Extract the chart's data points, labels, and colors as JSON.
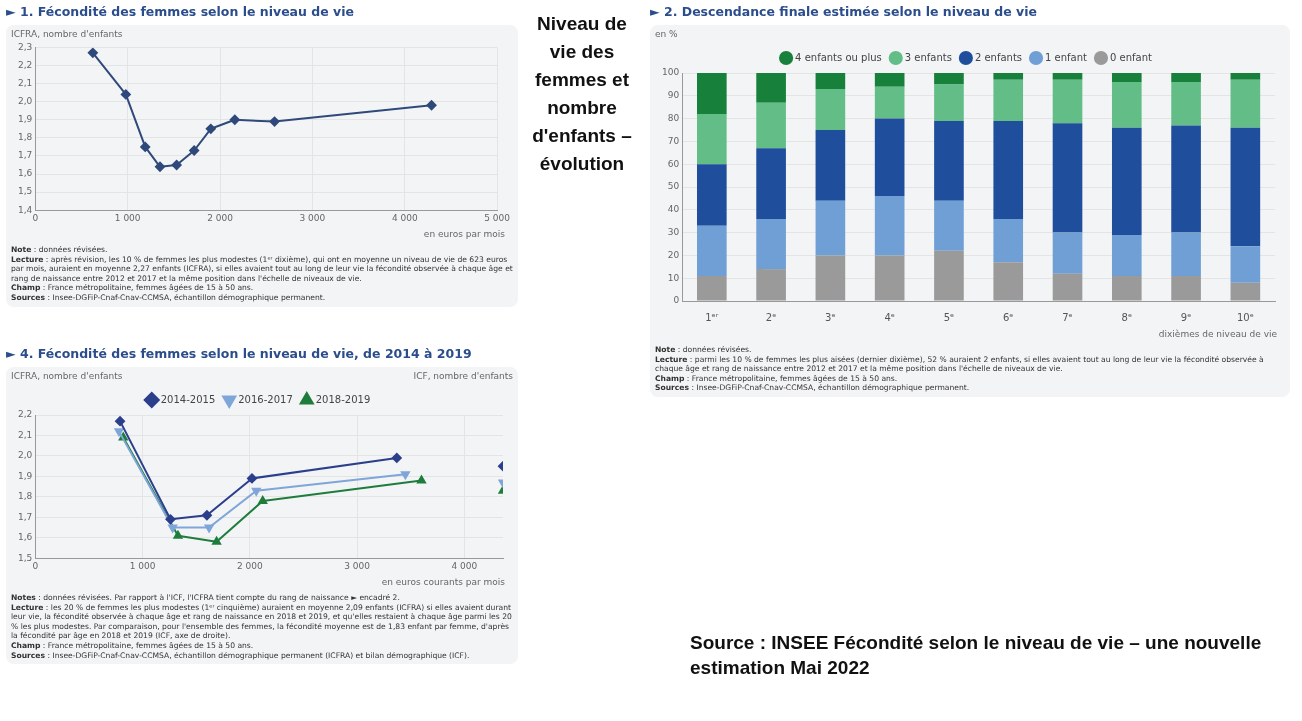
{
  "chart_data": [
    {
      "type": "line",
      "title": "► 1. Fécondité des femmes selon le niveau de vie",
      "ylabel": "ICFRA, nombre d'enfants",
      "xlabel": "en euros par mois",
      "grid": true,
      "legend": false,
      "marker": "diamond",
      "xlim": [
        0,
        5000
      ],
      "xticks": [
        0,
        {
          "value": 1000,
          "label": "1 000"
        },
        {
          "value": 2000,
          "label": "2 000"
        },
        {
          "value": 3000,
          "label": "3 000"
        },
        {
          "value": 4000,
          "label": "4 000"
        },
        {
          "value": 5000,
          "label": "5 000"
        }
      ],
      "ylim": [
        1.4,
        2.3
      ],
      "yticks": [
        {
          "value": 1.4,
          "label": "1,4"
        },
        {
          "value": 1.5,
          "label": "1,5"
        },
        {
          "value": 1.6,
          "label": "1,6"
        },
        {
          "value": 1.7,
          "label": "1,7"
        },
        {
          "value": 1.8,
          "label": "1,8"
        },
        {
          "value": 1.9,
          "label": "1,9"
        },
        {
          "value": 2.0,
          "label": "2,0"
        },
        {
          "value": 2.1,
          "label": "2,1"
        },
        {
          "value": 2.2,
          "label": "2,2"
        },
        {
          "value": 2.3,
          "label": "2,3"
        }
      ],
      "x": [
        623,
        980,
        1190,
        1350,
        1530,
        1720,
        1900,
        2160,
        2590,
        4290
      ],
      "series": [
        {
          "color": "#2f4a7a",
          "values": [
            2.27,
            2.04,
            1.75,
            1.64,
            1.65,
            1.73,
            1.85,
            1.9,
            1.89,
            1.98
          ]
        }
      ],
      "annotations": [
        "Note : données révisées.",
        "Lecture : après révision, les 10 % de femmes les plus modestes (1ᵉʳ dixième), qui ont en moyenne un niveau de vie de 623 euros par mois, auraient en moyenne 2,27 enfants (ICFRA), si elles avaient tout au long de leur vie la fécondité observée à chaque âge et rang de naissance entre 2012 et 2017 et la même position dans l'échelle de niveaux de vie.",
        "Champ : France métropolitaine, femmes âgées de 15 à 50 ans.",
        "Sources : Insee-DGFiP-Cnaf-Cnav-CCMSA, échantillon démographique permanent."
      ]
    },
    {
      "type": "other",
      "title": "Niveau de vie des femmes et nombre d'enfants – évolution"
    },
    {
      "type": "bar",
      "stacked": true,
      "title": "► 2. Descendance finale estimée selon le niveau de vie",
      "ylabel": "en %",
      "xlabel": "dixièmes de niveau de vie",
      "grid": "y",
      "legend": "top",
      "marker": "circle",
      "categories": [
        "1ᵉʳ",
        "2ᵉ",
        "3ᵉ",
        "4ᵉ",
        "5ᵉ",
        "6ᵉ",
        "7ᵉ",
        "8ᵉ",
        "9ᵉ",
        "10ᵉ"
      ],
      "ylim": [
        0,
        100
      ],
      "yticks": [
        0,
        10,
        20,
        30,
        40,
        50,
        60,
        70,
        80,
        90,
        100
      ],
      "series": [
        {
          "name": "0 enfant",
          "color": "#9a9a9a",
          "values": [
            11,
            14,
            20,
            20,
            22,
            17,
            12,
            11,
            11,
            8
          ]
        },
        {
          "name": "1 enfant",
          "color": "#6f9fd4",
          "values": [
            22,
            22,
            24,
            26,
            22,
            19,
            18,
            18,
            19,
            16
          ]
        },
        {
          "name": "2 enfants",
          "color": "#1f4e9c",
          "values": [
            27,
            31,
            31,
            34,
            35,
            43,
            48,
            47,
            47,
            52
          ]
        },
        {
          "name": "3 enfants",
          "color": "#62bd86",
          "values": [
            22,
            20,
            18,
            14,
            16,
            18,
            19,
            20,
            19,
            21
          ]
        },
        {
          "name": "4 enfants ou plus",
          "color": "#17803a",
          "values": [
            18,
            13,
            7,
            6,
            5,
            3,
            3,
            4,
            4,
            3
          ]
        }
      ],
      "annotations": [
        "Note : données révisées.",
        "Lecture : parmi les 10 % de femmes les plus aisées (dernier dixième), 52 % auraient 2 enfants, si elles avaient tout au long de leur vie la fécondité observée à chaque âge et rang de naissance entre 2012 et 2017 et la même position dans l'échelle de niveaux de vie.",
        "Champ : France métropolitaine, femmes âgées de 15 à 50 ans.",
        "Sources : Insee-DGFiP-Cnaf-Cnav-CCMSA, échantillon démographique permanent."
      ]
    },
    {
      "type": "line",
      "title": "► 4. Fécondité des femmes selon le niveau de vie, de 2014 à 2019",
      "ylabel": "ICFRA, nombre d'enfants",
      "y2label": "ICF, nombre d'enfants",
      "xlabel": "en euros courants par mois",
      "grid": true,
      "legend": "top",
      "xlim": [
        0,
        4360
      ],
      "xticks": [
        0,
        {
          "value": 1000,
          "label": "1 000"
        },
        {
          "value": 2000,
          "label": "2 000"
        },
        {
          "value": 3000,
          "label": "3 000"
        },
        {
          "value": 4000,
          "label": "4 000"
        }
      ],
      "ylim": [
        1.5,
        2.2
      ],
      "yticks": [
        {
          "value": 1.5,
          "label": "1,5"
        },
        {
          "value": 1.6,
          "label": "1,6"
        },
        {
          "value": 1.7,
          "label": "1,7"
        },
        {
          "value": 1.8,
          "label": "1,8"
        },
        {
          "value": 1.9,
          "label": "1,9"
        },
        {
          "value": 2.0,
          "label": "2,0"
        },
        {
          "value": 2.1,
          "label": "2,1"
        },
        {
          "value": 2.2,
          "label": "2,2"
        }
      ],
      "series": [
        {
          "name": "2014-2015",
          "color": "#2b3f8c",
          "marker": "diamond",
          "x": [
            790,
            1260,
            1600,
            2020,
            3370
          ],
          "values": [
            2.17,
            1.69,
            1.71,
            1.89,
            1.99
          ]
        },
        {
          "name": "2016-2017",
          "color": "#7ea6d8",
          "marker": "triangle-down",
          "x": [
            780,
            1280,
            1620,
            2060,
            3450
          ],
          "values": [
            2.12,
            1.65,
            1.65,
            1.83,
            1.91
          ]
        },
        {
          "name": "2018-2019",
          "color": "#1e7d3c",
          "marker": "triangle",
          "x": [
            820,
            1330,
            1690,
            2120,
            3600
          ],
          "values": [
            2.09,
            1.61,
            1.58,
            1.78,
            1.88
          ]
        },
        {
          "type": "scatter",
          "color": "#2b3f8c",
          "marker": "diamond",
          "x": [
            4360
          ],
          "values": [
            1.95
          ]
        },
        {
          "type": "scatter",
          "color": "#7ea6d8",
          "marker": "triangle-down",
          "x": [
            4360
          ],
          "values": [
            1.87
          ]
        },
        {
          "type": "scatter",
          "color": "#1e7d3c",
          "marker": "triangle",
          "x": [
            4360
          ],
          "values": [
            1.83
          ]
        }
      ],
      "annotations": [
        "Notes : données révisées. Par rapport à l'ICF, l'ICFRA tient compte du rang de naissance ► encadré 2.",
        "Lecture : les 20 % de femmes les plus modestes (1ᵉʳ cinquième) auraient en moyenne 2,09 enfants (ICFRA) si elles avaient durant leur vie, la fécondité observée à chaque âge et rang de naissance en 2018 et 2019, et qu'elles restaient à chaque âge parmi les 20 % les plus modestes. Par comparaison, pour l'ensemble des femmes, la fécondité moyenne est de 1,83 enfant par femme, d'après la fécondité par âge en 2018 et 2019 (ICF, axe de droite).",
        "Champ : France métropolitaine, femmes âgées de 15 à 50 ans.",
        "Sources : Insee-DGFiP-Cnaf-Cnav-CCMSA, échantillon démographique permanent (ICFRA) et bilan démographique (ICF)."
      ]
    },
    {
      "type": "other",
      "annotations": [
        "Source : INSEE Fécondité selon le niveau de vie – une nouvelle estimation Mai 2022"
      ]
    }
  ]
}
